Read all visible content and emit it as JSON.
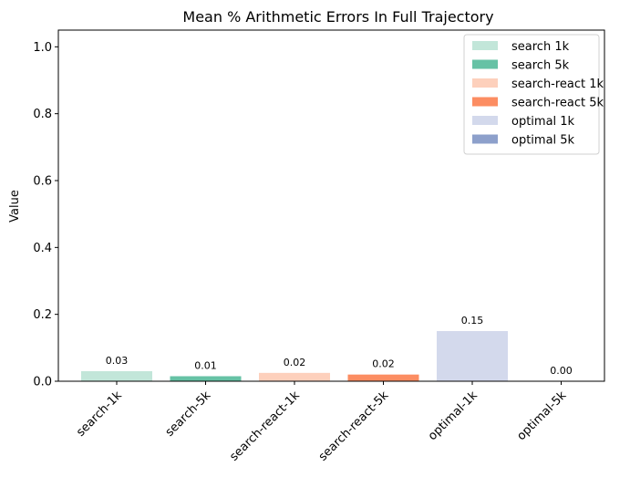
{
  "chart_data": {
    "type": "bar",
    "title": "Mean % Arithmetic Errors In Full Trajectory",
    "xlabel": "",
    "ylabel": "Value",
    "ylim": [
      0,
      1.05
    ],
    "yticks": [
      "0.0",
      "0.2",
      "0.4",
      "0.6",
      "0.8",
      "1.0"
    ],
    "grid": false,
    "legend_position": "top-right",
    "categories": [
      "search-1k",
      "search-5k",
      "search-react-1k",
      "search-react-5k",
      "optimal-1k",
      "optimal-5k"
    ],
    "values": [
      0.03,
      0.015,
      0.025,
      0.02,
      0.15,
      0.0
    ],
    "data_labels": [
      "0.03",
      "0.01",
      "0.02",
      "0.02",
      "0.15",
      "0.00"
    ],
    "colors": [
      "#c2e6d9",
      "#66c2a5",
      "#fdd0bc",
      "#fc8d62",
      "#d3d9ec",
      "#8da0cb"
    ],
    "legend": [
      "search 1k",
      "search 5k",
      "search-react 1k",
      "search-react 5k",
      "optimal 1k",
      "optimal 5k"
    ]
  }
}
